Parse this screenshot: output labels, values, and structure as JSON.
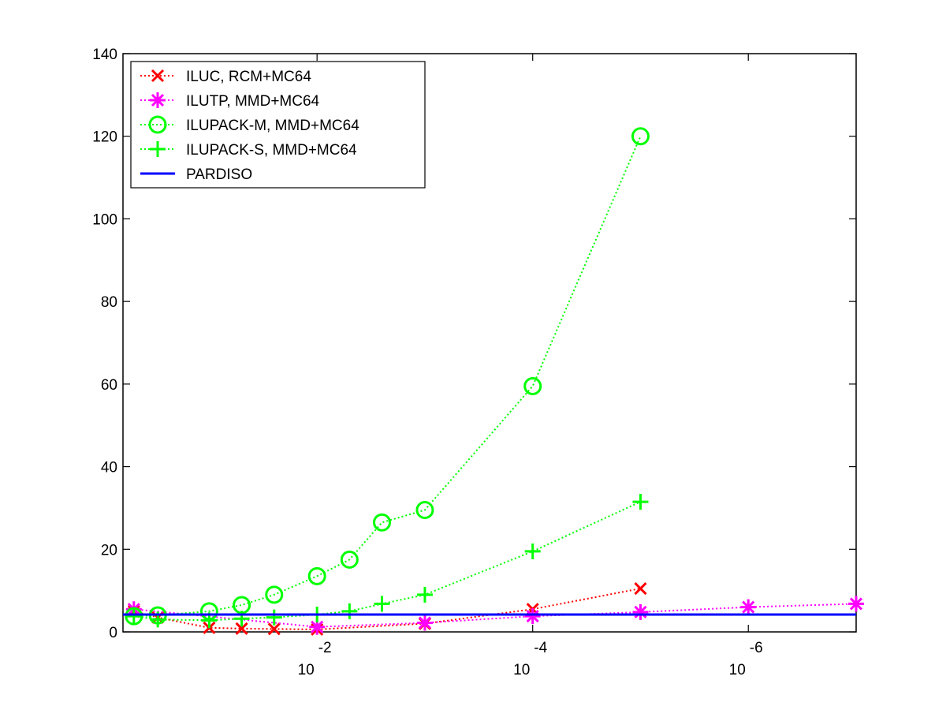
{
  "chart_data": {
    "type": "line",
    "title": "",
    "xlabel": "",
    "ylabel": "",
    "xscale": "log",
    "xaxis_direction": "decreasing",
    "xlim": [
      0.631,
      1e-07
    ],
    "ylim": [
      0,
      140
    ],
    "y_ticks": [
      0,
      20,
      40,
      60,
      80,
      100,
      120,
      140
    ],
    "x_ticks": [
      {
        "value": 0.01,
        "base": "10",
        "exponent": "-2"
      },
      {
        "value": 0.0001,
        "base": "10",
        "exponent": "-4"
      },
      {
        "value": 1e-06,
        "base": "10",
        "exponent": "-6"
      }
    ],
    "grid": false,
    "legend_position": "top-left",
    "series": [
      {
        "name": "ILUC, RCM+MC64",
        "color": "#ff0000",
        "marker": "x",
        "line_style": "dotted",
        "points": [
          {
            "x": 0.5,
            "y": 5.0
          },
          {
            "x": 0.3,
            "y": 3.5
          },
          {
            "x": 0.1,
            "y": 1.0
          },
          {
            "x": 0.05,
            "y": 0.8
          },
          {
            "x": 0.025,
            "y": 0.7
          },
          {
            "x": 0.01,
            "y": 0.6
          },
          {
            "x": 0.001,
            "y": 2.0
          },
          {
            "x": 0.0001,
            "y": 5.5
          },
          {
            "x": 1e-05,
            "y": 10.5
          }
        ]
      },
      {
        "name": "ILUTP, MMD+MC64",
        "color": "#ff00ff",
        "marker": "star",
        "line_style": "dotted",
        "points": [
          {
            "x": 0.5,
            "y": 5.5
          },
          {
            "x": 0.01,
            "y": 1.2
          },
          {
            "x": 0.001,
            "y": 2.2
          },
          {
            "x": 0.0001,
            "y": 3.8
          },
          {
            "x": 1e-05,
            "y": 4.8
          },
          {
            "x": 1e-06,
            "y": 6.0
          },
          {
            "x": 1e-07,
            "y": 6.8
          }
        ]
      },
      {
        "name": "ILUPACK-M, MMD+MC64",
        "color": "#00ff00",
        "marker": "circle",
        "line_style": "dotted",
        "points": [
          {
            "x": 0.5,
            "y": 3.8
          },
          {
            "x": 0.3,
            "y": 4.0
          },
          {
            "x": 0.1,
            "y": 5.0
          },
          {
            "x": 0.05,
            "y": 6.5
          },
          {
            "x": 0.025,
            "y": 9.0
          },
          {
            "x": 0.01,
            "y": 13.5
          },
          {
            "x": 0.005,
            "y": 17.5
          },
          {
            "x": 0.0025,
            "y": 26.5
          },
          {
            "x": 0.001,
            "y": 29.5
          },
          {
            "x": 0.0001,
            "y": 59.5
          },
          {
            "x": 1e-05,
            "y": 120.0
          }
        ]
      },
      {
        "name": "ILUPACK-S, MMD+MC64",
        "color": "#00ff00",
        "marker": "plus",
        "line_style": "dotted",
        "points": [
          {
            "x": 0.5,
            "y": 3.8
          },
          {
            "x": 0.3,
            "y": 3.0
          },
          {
            "x": 0.1,
            "y": 2.8
          },
          {
            "x": 0.05,
            "y": 3.2
          },
          {
            "x": 0.025,
            "y": 3.5
          },
          {
            "x": 0.01,
            "y": 4.2
          },
          {
            "x": 0.005,
            "y": 5.0
          },
          {
            "x": 0.0025,
            "y": 6.8
          },
          {
            "x": 0.001,
            "y": 9.0
          },
          {
            "x": 0.0001,
            "y": 19.5
          },
          {
            "x": 1e-05,
            "y": 31.5
          }
        ]
      },
      {
        "name": "PARDISO",
        "color": "#0000ff",
        "marker": "none",
        "line_style": "solid",
        "points": [
          {
            "x": 0.631,
            "y": 4.2
          },
          {
            "x": 1e-07,
            "y": 4.2
          }
        ]
      }
    ]
  }
}
